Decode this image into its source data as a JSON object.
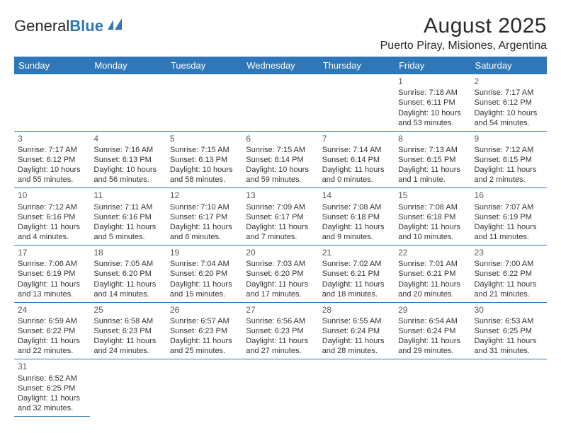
{
  "logo": {
    "text1": "General",
    "text2": "Blue"
  },
  "colors": {
    "header_bg": "#2f77b8",
    "header_fg": "#ffffff",
    "border": "#2f77b8"
  },
  "title": "August 2025",
  "location": "Puerto Piray, Misiones, Argentina",
  "weekdays": [
    "Sunday",
    "Monday",
    "Tuesday",
    "Wednesday",
    "Thursday",
    "Friday",
    "Saturday"
  ],
  "weeks": [
    [
      {
        "blank": true
      },
      {
        "blank": true
      },
      {
        "blank": true
      },
      {
        "blank": true
      },
      {
        "blank": true
      },
      {
        "day": "1",
        "sunrise": "Sunrise: 7:18 AM",
        "sunset": "Sunset: 6:11 PM",
        "daylight": "Daylight: 10 hours and 53 minutes."
      },
      {
        "day": "2",
        "sunrise": "Sunrise: 7:17 AM",
        "sunset": "Sunset: 6:12 PM",
        "daylight": "Daylight: 10 hours and 54 minutes."
      }
    ],
    [
      {
        "day": "3",
        "sunrise": "Sunrise: 7:17 AM",
        "sunset": "Sunset: 6:12 PM",
        "daylight": "Daylight: 10 hours and 55 minutes."
      },
      {
        "day": "4",
        "sunrise": "Sunrise: 7:16 AM",
        "sunset": "Sunset: 6:13 PM",
        "daylight": "Daylight: 10 hours and 56 minutes."
      },
      {
        "day": "5",
        "sunrise": "Sunrise: 7:15 AM",
        "sunset": "Sunset: 6:13 PM",
        "daylight": "Daylight: 10 hours and 58 minutes."
      },
      {
        "day": "6",
        "sunrise": "Sunrise: 7:15 AM",
        "sunset": "Sunset: 6:14 PM",
        "daylight": "Daylight: 10 hours and 59 minutes."
      },
      {
        "day": "7",
        "sunrise": "Sunrise: 7:14 AM",
        "sunset": "Sunset: 6:14 PM",
        "daylight": "Daylight: 11 hours and 0 minutes."
      },
      {
        "day": "8",
        "sunrise": "Sunrise: 7:13 AM",
        "sunset": "Sunset: 6:15 PM",
        "daylight": "Daylight: 11 hours and 1 minute."
      },
      {
        "day": "9",
        "sunrise": "Sunrise: 7:12 AM",
        "sunset": "Sunset: 6:15 PM",
        "daylight": "Daylight: 11 hours and 2 minutes."
      }
    ],
    [
      {
        "day": "10",
        "sunrise": "Sunrise: 7:12 AM",
        "sunset": "Sunset: 6:16 PM",
        "daylight": "Daylight: 11 hours and 4 minutes."
      },
      {
        "day": "11",
        "sunrise": "Sunrise: 7:11 AM",
        "sunset": "Sunset: 6:16 PM",
        "daylight": "Daylight: 11 hours and 5 minutes."
      },
      {
        "day": "12",
        "sunrise": "Sunrise: 7:10 AM",
        "sunset": "Sunset: 6:17 PM",
        "daylight": "Daylight: 11 hours and 6 minutes."
      },
      {
        "day": "13",
        "sunrise": "Sunrise: 7:09 AM",
        "sunset": "Sunset: 6:17 PM",
        "daylight": "Daylight: 11 hours and 7 minutes."
      },
      {
        "day": "14",
        "sunrise": "Sunrise: 7:08 AM",
        "sunset": "Sunset: 6:18 PM",
        "daylight": "Daylight: 11 hours and 9 minutes."
      },
      {
        "day": "15",
        "sunrise": "Sunrise: 7:08 AM",
        "sunset": "Sunset: 6:18 PM",
        "daylight": "Daylight: 11 hours and 10 minutes."
      },
      {
        "day": "16",
        "sunrise": "Sunrise: 7:07 AM",
        "sunset": "Sunset: 6:19 PM",
        "daylight": "Daylight: 11 hours and 11 minutes."
      }
    ],
    [
      {
        "day": "17",
        "sunrise": "Sunrise: 7:06 AM",
        "sunset": "Sunset: 6:19 PM",
        "daylight": "Daylight: 11 hours and 13 minutes."
      },
      {
        "day": "18",
        "sunrise": "Sunrise: 7:05 AM",
        "sunset": "Sunset: 6:20 PM",
        "daylight": "Daylight: 11 hours and 14 minutes."
      },
      {
        "day": "19",
        "sunrise": "Sunrise: 7:04 AM",
        "sunset": "Sunset: 6:20 PM",
        "daylight": "Daylight: 11 hours and 15 minutes."
      },
      {
        "day": "20",
        "sunrise": "Sunrise: 7:03 AM",
        "sunset": "Sunset: 6:20 PM",
        "daylight": "Daylight: 11 hours and 17 minutes."
      },
      {
        "day": "21",
        "sunrise": "Sunrise: 7:02 AM",
        "sunset": "Sunset: 6:21 PM",
        "daylight": "Daylight: 11 hours and 18 minutes."
      },
      {
        "day": "22",
        "sunrise": "Sunrise: 7:01 AM",
        "sunset": "Sunset: 6:21 PM",
        "daylight": "Daylight: 11 hours and 20 minutes."
      },
      {
        "day": "23",
        "sunrise": "Sunrise: 7:00 AM",
        "sunset": "Sunset: 6:22 PM",
        "daylight": "Daylight: 11 hours and 21 minutes."
      }
    ],
    [
      {
        "day": "24",
        "sunrise": "Sunrise: 6:59 AM",
        "sunset": "Sunset: 6:22 PM",
        "daylight": "Daylight: 11 hours and 22 minutes."
      },
      {
        "day": "25",
        "sunrise": "Sunrise: 6:58 AM",
        "sunset": "Sunset: 6:23 PM",
        "daylight": "Daylight: 11 hours and 24 minutes."
      },
      {
        "day": "26",
        "sunrise": "Sunrise: 6:57 AM",
        "sunset": "Sunset: 6:23 PM",
        "daylight": "Daylight: 11 hours and 25 minutes."
      },
      {
        "day": "27",
        "sunrise": "Sunrise: 6:56 AM",
        "sunset": "Sunset: 6:23 PM",
        "daylight": "Daylight: 11 hours and 27 minutes."
      },
      {
        "day": "28",
        "sunrise": "Sunrise: 6:55 AM",
        "sunset": "Sunset: 6:24 PM",
        "daylight": "Daylight: 11 hours and 28 minutes."
      },
      {
        "day": "29",
        "sunrise": "Sunrise: 6:54 AM",
        "sunset": "Sunset: 6:24 PM",
        "daylight": "Daylight: 11 hours and 29 minutes."
      },
      {
        "day": "30",
        "sunrise": "Sunrise: 6:53 AM",
        "sunset": "Sunset: 6:25 PM",
        "daylight": "Daylight: 11 hours and 31 minutes."
      }
    ],
    [
      {
        "day": "31",
        "sunrise": "Sunrise: 6:52 AM",
        "sunset": "Sunset: 6:25 PM",
        "daylight": "Daylight: 11 hours and 32 minutes."
      },
      {
        "blank": true
      },
      {
        "blank": true
      },
      {
        "blank": true
      },
      {
        "blank": true
      },
      {
        "blank": true
      },
      {
        "blank": true
      }
    ]
  ]
}
